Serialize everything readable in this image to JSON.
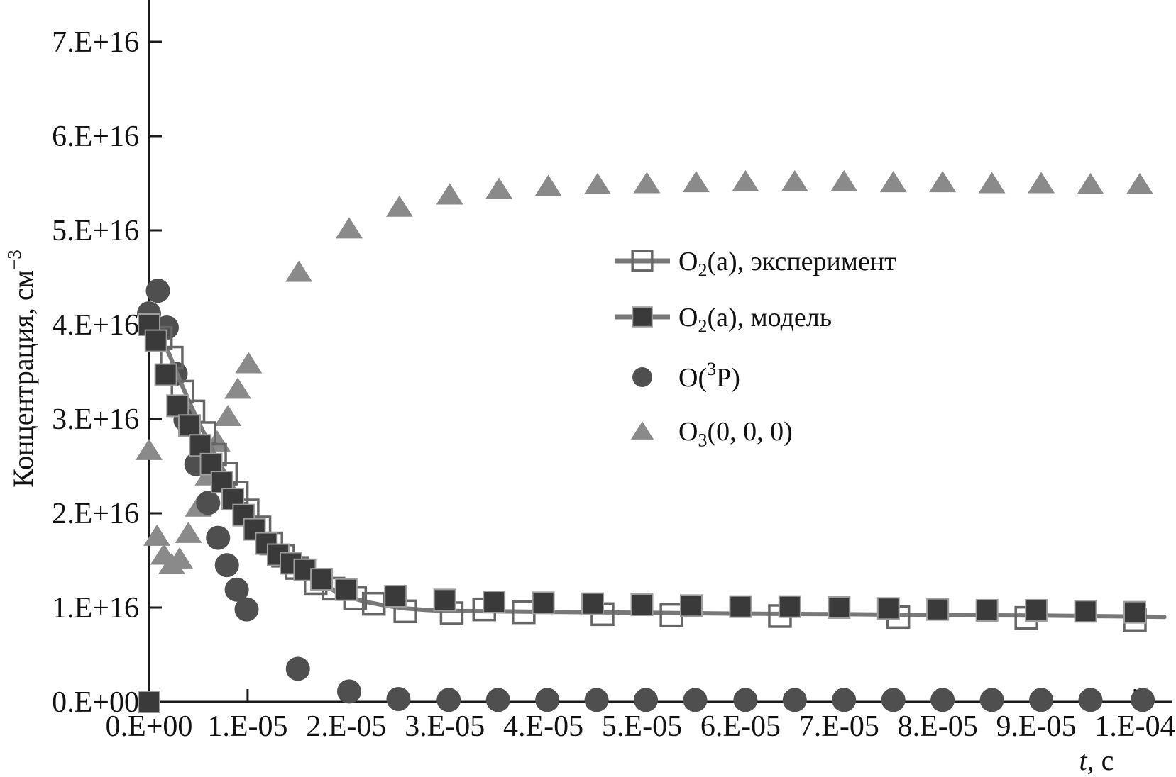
{
  "chart_data": {
    "type": "scatter",
    "title": "",
    "xlabel_segments": [
      {
        "t": "t",
        "italic": true
      },
      {
        "t": ", с"
      }
    ],
    "ylabel_segments": [
      {
        "t": "Концентрация, см"
      },
      {
        "t": "−3",
        "sup": true
      }
    ],
    "x_axis": {
      "unit": "s",
      "range": [
        0,
        0.000105
      ],
      "tick_values_us": [
        0,
        10,
        20,
        30,
        40,
        50,
        60,
        70,
        80,
        90,
        100
      ],
      "tick_labels": [
        "0.E+00",
        "1.E-05",
        "2.E-05",
        "3.E-05",
        "4.E-05",
        "5.E-05",
        "6.E-05",
        "7.E-05",
        "8.E-05",
        "9.E-05",
        "1.E-04"
      ]
    },
    "y_axis": {
      "unit": "cm^-3",
      "range_e16": [
        0,
        7.35
      ],
      "tick_values_e16": [
        0,
        1,
        2,
        3,
        4,
        5,
        6,
        7
      ],
      "tick_labels": [
        "0.E+00",
        "1.E+16",
        "2.E+16",
        "3.E+16",
        "4.E+16",
        "5.E+16",
        "6.E+16",
        "7.E+16"
      ]
    },
    "units_note": {
      "t_units": "microseconds (1e-6 s)",
      "conc_units": "1e16 cm^-3"
    },
    "grid": false,
    "legend_position": "upper middle-right",
    "series": [
      {
        "key": "o2_experiment",
        "label_segments": [
          {
            "t": "O"
          },
          {
            "t": "2",
            "sub": true
          },
          {
            "t": "(a), эксперимент"
          }
        ],
        "marker": "open-square",
        "marker_color": "#666666",
        "has_line": true,
        "line_color": "#787878",
        "t_us": [
          1.2,
          2.3,
          3.4,
          4.5,
          5.6,
          6.7,
          7.8,
          8.9,
          10,
          11.2,
          12.4,
          13.6,
          15,
          16.9,
          18.7,
          20.9,
          22.8,
          26,
          30.7,
          34,
          38,
          46,
          53,
          64,
          76,
          89,
          100
        ],
        "conc_e16": [
          3.86,
          3.65,
          3.29,
          3.08,
          2.85,
          2.62,
          2.42,
          2.22,
          2.03,
          1.85,
          1.68,
          1.55,
          1.42,
          1.26,
          1.2,
          1.1,
          1.04,
          0.96,
          0.94,
          0.98,
          0.95,
          0.93,
          0.92,
          0.91,
          0.9,
          0.89,
          0.87
        ]
      },
      {
        "key": "o2_model",
        "label_segments": [
          {
            "t": "O"
          },
          {
            "t": "2",
            "sub": true
          },
          {
            "t": "(a), модель"
          }
        ],
        "marker": "filled-square",
        "marker_color": "#3a3a3a",
        "has_line": false,
        "t_us": [
          0,
          0.7,
          1.7,
          2.9,
          4.1,
          5.2,
          6.3,
          7.4,
          8.5,
          9.6,
          10.7,
          11.9,
          13.1,
          14.4,
          15.8,
          17.5,
          20,
          25,
          30,
          35,
          40,
          45,
          50,
          55,
          60,
          65,
          70,
          75,
          80,
          85,
          90,
          95,
          100
        ],
        "conc_e16": [
          4.0,
          3.83,
          3.47,
          3.14,
          2.93,
          2.72,
          2.52,
          2.33,
          2.15,
          1.98,
          1.83,
          1.68,
          1.56,
          1.47,
          1.4,
          1.3,
          1.19,
          1.12,
          1.08,
          1.06,
          1.05,
          1.04,
          1.03,
          1.02,
          1.01,
          1.01,
          1.0,
          0.99,
          0.98,
          0.97,
          0.97,
          0.96,
          0.95
        ]
      },
      {
        "key": "o3p",
        "label_segments": [
          {
            "t": "O("
          },
          {
            "t": "3",
            "sup": true
          },
          {
            "t": "P)"
          }
        ],
        "marker": "circle",
        "marker_color": "#4f4f4f",
        "has_line": false,
        "t_us": [
          0,
          0.9,
          1.8,
          2.7,
          3.7,
          4.8,
          6,
          7,
          7.9,
          8.9,
          9.9,
          15.1,
          20.3,
          25.3,
          30.4,
          35.4,
          40.4,
          45.4,
          50.4,
          55.4,
          60.5,
          65.5,
          70.5,
          75.5,
          80.5,
          85.5,
          90.5,
          95.5,
          100.8
        ],
        "conc_e16": [
          4.12,
          4.36,
          3.97,
          3.48,
          2.99,
          2.52,
          2.11,
          1.74,
          1.45,
          1.19,
          0.98,
          0.35,
          0.11,
          0.03,
          0.02,
          0.02,
          0.02,
          0.02,
          0.02,
          0.02,
          0.02,
          0.02,
          0.02,
          0.02,
          0.02,
          0.02,
          0.02,
          0.02,
          0.02
        ]
      },
      {
        "key": "o3_000",
        "label_segments": [
          {
            "t": "O"
          },
          {
            "t": "3",
            "sub": true
          },
          {
            "t": "(0, 0, 0)"
          }
        ],
        "marker": "triangle",
        "marker_color": "#8a8a8a",
        "has_line": false,
        "t_us": [
          0,
          0.8,
          1.5,
          2.3,
          3.1,
          4,
          5,
          6,
          6.9,
          8,
          9,
          10.1,
          15.2,
          20.3,
          25.4,
          30.5,
          35.5,
          40.5,
          45.5,
          50.5,
          55.5,
          60.5,
          65.5,
          70.5,
          75.5,
          80.5,
          85.5,
          90.5,
          95.5,
          100.5
        ],
        "conc_e16": [
          2.67,
          1.76,
          1.56,
          1.46,
          1.52,
          1.79,
          2.07,
          2.4,
          2.76,
          3.03,
          3.32,
          3.59,
          4.56,
          5.02,
          5.25,
          5.38,
          5.44,
          5.47,
          5.49,
          5.5,
          5.51,
          5.52,
          5.52,
          5.52,
          5.51,
          5.51,
          5.5,
          5.5,
          5.49,
          5.49
        ]
      }
    ],
    "experiment_curve": {
      "description": "smooth gray line through O2(a) experiment points",
      "t_us": [
        0,
        1,
        2,
        3,
        4,
        5,
        6,
        7,
        8,
        9,
        10,
        11,
        12,
        13,
        14,
        15,
        16,
        17,
        18,
        19,
        20,
        21,
        22,
        24,
        26,
        28,
        30,
        35,
        40,
        50,
        60,
        70,
        80,
        90,
        100,
        103
      ],
      "conc_e16": [
        3.97,
        3.87,
        3.7,
        3.44,
        3.2,
        2.97,
        2.76,
        2.56,
        2.37,
        2.19,
        2.02,
        1.86,
        1.72,
        1.6,
        1.51,
        1.44,
        1.39,
        1.33,
        1.24,
        1.16,
        1.12,
        1.09,
        1.06,
        1.02,
        0.99,
        0.975,
        0.965,
        0.96,
        0.955,
        0.945,
        0.935,
        0.93,
        0.92,
        0.915,
        0.905,
        0.9
      ]
    },
    "origin_marker": {
      "marker": "filled-square",
      "t_us": 0,
      "conc_e16": 0
    },
    "colors": {
      "axis": "#1a1a1a",
      "text": "#111111",
      "curve": "#787878",
      "open_square_stroke": "#666666",
      "filled_square": "#3a3a3a",
      "filled_square_halo": "#9e9e9e",
      "circle": "#4f4f4f",
      "triangle": "#8a8a8a",
      "background": "#ffffff"
    }
  }
}
